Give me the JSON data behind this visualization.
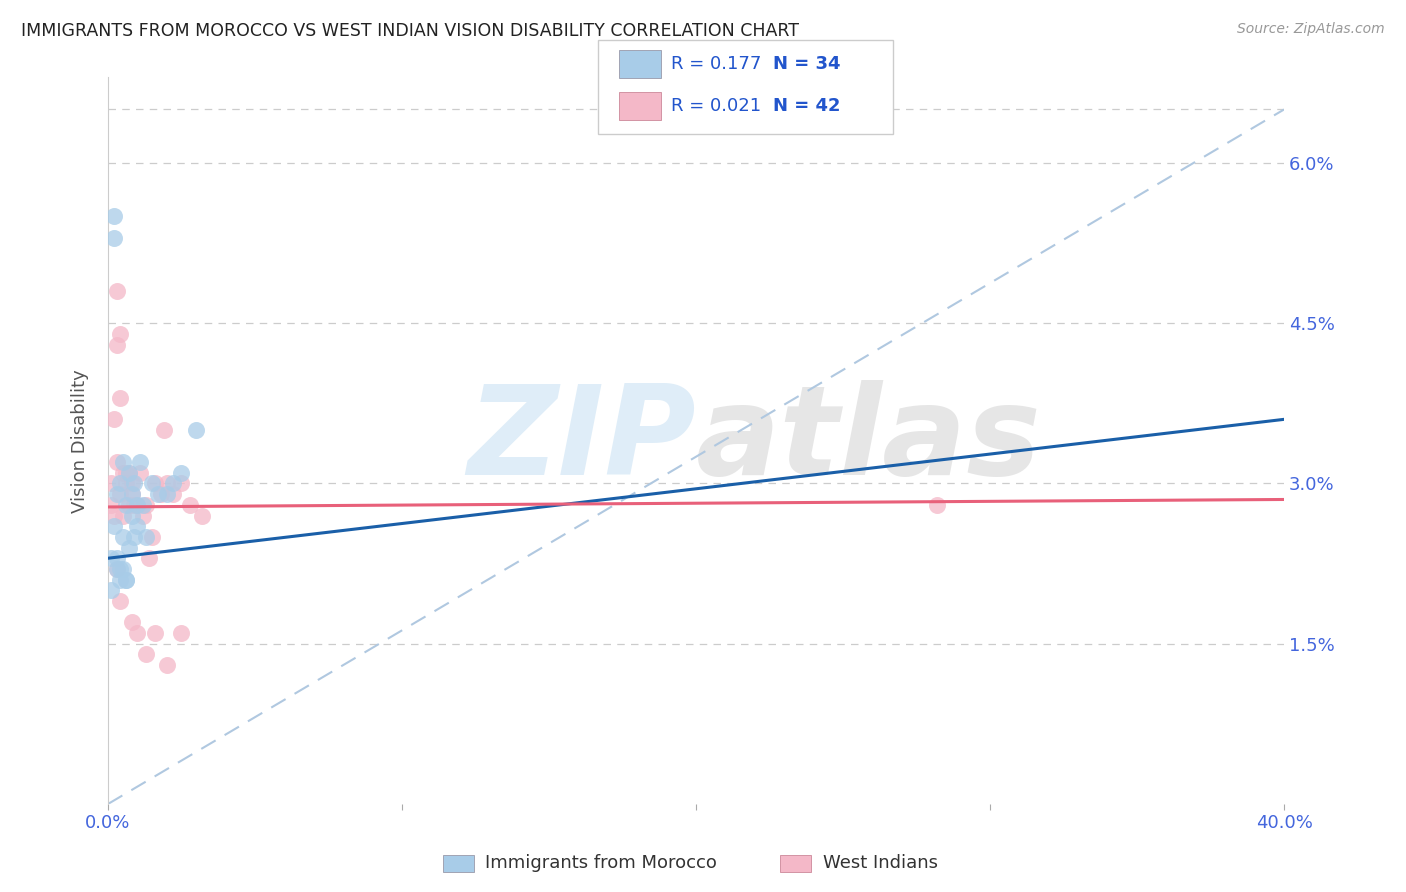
{
  "title": "IMMIGRANTS FROM MOROCCO VS WEST INDIAN VISION DISABILITY CORRELATION CHART",
  "source": "Source: ZipAtlas.com",
  "ylabel": "Vision Disability",
  "xlim": [
    0.0,
    0.4
  ],
  "ylim": [
    0.0,
    0.068
  ],
  "yticks": [
    0.0,
    0.015,
    0.03,
    0.045,
    0.06
  ],
  "ytick_labels": [
    "",
    "1.5%",
    "3.0%",
    "4.5%",
    "6.0%"
  ],
  "legend_R1": "R = 0.177",
  "legend_N1": "N = 34",
  "legend_R2": "R = 0.021",
  "legend_N2": "N = 42",
  "legend_label1": "Immigrants from Morocco",
  "legend_label2": "West Indians",
  "color_blue": "#a8cce8",
  "color_pink": "#f4b8c8",
  "color_blue_line": "#1a5fa8",
  "color_pink_line": "#e8607a",
  "color_dashed": "#b0c8e0",
  "watermark": "ZIPatlas",
  "morocco_x": [
    0.001,
    0.001,
    0.002,
    0.002,
    0.003,
    0.003,
    0.004,
    0.004,
    0.005,
    0.005,
    0.006,
    0.006,
    0.007,
    0.007,
    0.008,
    0.008,
    0.009,
    0.009,
    0.01,
    0.01,
    0.011,
    0.012,
    0.013,
    0.015,
    0.017,
    0.02,
    0.022,
    0.025,
    0.03,
    0.002,
    0.003,
    0.004,
    0.005,
    0.006
  ],
  "morocco_y": [
    0.023,
    0.02,
    0.026,
    0.055,
    0.029,
    0.022,
    0.03,
    0.021,
    0.025,
    0.032,
    0.028,
    0.021,
    0.031,
    0.024,
    0.029,
    0.027,
    0.025,
    0.03,
    0.026,
    0.028,
    0.032,
    0.028,
    0.025,
    0.03,
    0.029,
    0.029,
    0.03,
    0.031,
    0.035,
    0.053,
    0.023,
    0.022,
    0.022,
    0.021
  ],
  "westindian_x": [
    0.001,
    0.001,
    0.002,
    0.002,
    0.003,
    0.003,
    0.004,
    0.004,
    0.005,
    0.005,
    0.006,
    0.007,
    0.007,
    0.008,
    0.008,
    0.009,
    0.01,
    0.011,
    0.012,
    0.013,
    0.014,
    0.015,
    0.016,
    0.018,
    0.019,
    0.02,
    0.022,
    0.025,
    0.028,
    0.032,
    0.003,
    0.004,
    0.006,
    0.008,
    0.01,
    0.013,
    0.016,
    0.02,
    0.025,
    0.282,
    0.003,
    0.004
  ],
  "westindian_y": [
    0.028,
    0.03,
    0.027,
    0.036,
    0.043,
    0.048,
    0.029,
    0.044,
    0.031,
    0.027,
    0.03,
    0.028,
    0.031,
    0.03,
    0.029,
    0.028,
    0.028,
    0.031,
    0.027,
    0.028,
    0.023,
    0.025,
    0.03,
    0.029,
    0.035,
    0.03,
    0.029,
    0.03,
    0.028,
    0.027,
    0.032,
    0.038,
    0.031,
    0.017,
    0.016,
    0.014,
    0.016,
    0.013,
    0.016,
    0.028,
    0.022,
    0.019
  ],
  "blue_line_x0": 0.0,
  "blue_line_y0": 0.023,
  "blue_line_x1": 0.4,
  "blue_line_y1": 0.036,
  "pink_line_x0": 0.0,
  "pink_line_y0": 0.0278,
  "pink_line_x1": 0.4,
  "pink_line_y1": 0.0285
}
